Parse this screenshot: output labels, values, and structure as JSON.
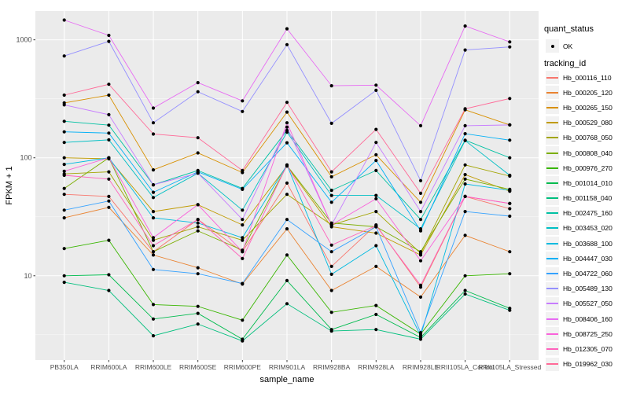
{
  "chart_data": {
    "type": "line",
    "title": "",
    "xlabel": "sample_name",
    "ylabel": "FPKM + 1",
    "y_scale": "log10",
    "y_ticks": [
      10,
      100,
      1000
    ],
    "y_minor_ticks": [
      3.162,
      31.62,
      316.2
    ],
    "ylim": [
      1.93,
      1755
    ],
    "x_categories": [
      "PB350LA",
      "RRIM600LA",
      "RRIM600LE",
      "RRIM600SE",
      "RRIM600PE",
      "RRIM901LA",
      "RRIM928BA",
      "RRIM928LA",
      "RRIM928LE",
      "RRII105LA_Control",
      "RRII105LA_Stressed"
    ],
    "panel_bg": "#EBEBEB",
    "grid_color": "#FFFFFF",
    "axis_text_color": "#4D4D4D",
    "tick_color": "#333333",
    "point_color": "#000000",
    "quant_status_legend": {
      "title": "quant_status",
      "items": [
        "OK"
      ]
    },
    "series_legend_title": "tracking_id",
    "series": [
      {
        "name": "Hb_000116_110",
        "color": "#F8766D",
        "values": [
          49,
          47,
          16,
          30,
          16,
          61,
          12,
          27,
          8.0,
          47,
          37
        ]
      },
      {
        "name": "Hb_000205_120",
        "color": "#EA8331",
        "values": [
          31,
          38,
          15,
          11.7,
          8.5,
          25,
          7.5,
          12,
          6.6,
          22,
          16
        ]
      },
      {
        "name": "Hb_000265_150",
        "color": "#D89000",
        "values": [
          292,
          340,
          79,
          110,
          75,
          244,
          69,
          106,
          42,
          255,
          190
        ]
      },
      {
        "name": "Hb_000529_080",
        "color": "#C09B00",
        "values": [
          100,
          98,
          35,
          40,
          27,
          85,
          26,
          23,
          15,
          72,
          52
        ]
      },
      {
        "name": "Hb_000768_050",
        "color": "#A3A500",
        "values": [
          73,
          76,
          20,
          26,
          20,
          49,
          27,
          35,
          15.5,
          87,
          70
        ]
      },
      {
        "name": "Hb_000808_040",
        "color": "#7CAE00",
        "values": [
          55,
          100,
          16,
          24,
          16.5,
          86,
          28,
          26,
          16,
          66,
          54
        ]
      },
      {
        "name": "Hb_000976_270",
        "color": "#39B600",
        "values": [
          17,
          20,
          5.7,
          5.5,
          4.2,
          15,
          4.9,
          5.6,
          3.2,
          10,
          10.4
        ]
      },
      {
        "name": "Hb_001014_010",
        "color": "#00BB4E",
        "values": [
          10,
          10.2,
          4.3,
          4.8,
          2.9,
          9.1,
          3.5,
          4.7,
          3.0,
          7.5,
          5.3
        ]
      },
      {
        "name": "Hb_001158_040",
        "color": "#00BF7D",
        "values": [
          8.8,
          7.5,
          3.1,
          3.9,
          2.8,
          5.8,
          3.4,
          3.5,
          2.9,
          7.0,
          5.1
        ]
      },
      {
        "name": "Hb_002475_160",
        "color": "#00C1A3",
        "values": [
          204,
          189,
          59,
          78,
          55,
          171,
          53,
          78,
          30,
          141,
          100
        ]
      },
      {
        "name": "Hb_003453_020",
        "color": "#00BFC4",
        "values": [
          135,
          142,
          46,
          74,
          36,
          165,
          48,
          48,
          25,
          140,
          71
        ]
      },
      {
        "name": "Hb_003688_100",
        "color": "#00BAE0",
        "values": [
          88,
          100,
          31,
          28,
          21,
          87,
          10.3,
          18,
          3.1,
          60,
          53
        ]
      },
      {
        "name": "Hb_004447_030",
        "color": "#00B0F6",
        "values": [
          166,
          162,
          51,
          76,
          54,
          134,
          42,
          95,
          24,
          160,
          141
        ]
      },
      {
        "name": "Hb_004722_060",
        "color": "#35A2FF",
        "values": [
          36,
          43,
          11.3,
          10.4,
          8.6,
          30,
          16,
          26,
          3.3,
          35,
          32
        ]
      },
      {
        "name": "Hb_005489_130",
        "color": "#9590FF",
        "values": [
          730,
          970,
          198,
          363,
          247,
          910,
          196,
          373,
          64,
          820,
          870
        ]
      },
      {
        "name": "Hb_005527_050",
        "color": "#C77CFF",
        "values": [
          281,
          232,
          59,
          74,
          30,
          182,
          27,
          135,
          35,
          187,
          190
        ]
      },
      {
        "name": "Hb_008406_160",
        "color": "#E76BF3",
        "values": [
          1470,
          1090,
          264,
          434,
          304,
          1240,
          408,
          413,
          187,
          1310,
          960
        ]
      },
      {
        "name": "Hb_008725_250",
        "color": "#FA62DB",
        "values": [
          77,
          100,
          21,
          40,
          16,
          198,
          27,
          45,
          13.4,
          47,
          41
        ]
      },
      {
        "name": "Hb_012305_070",
        "color": "#FF62BC",
        "values": [
          71,
          66,
          18,
          30,
          14,
          87,
          18.2,
          26.6,
          8.3,
          47,
          41
        ]
      },
      {
        "name": "Hb_019962_030",
        "color": "#FF6A98",
        "values": [
          340,
          420,
          159,
          148,
          78,
          295,
          76,
          174,
          50,
          260,
          318
        ]
      }
    ]
  }
}
